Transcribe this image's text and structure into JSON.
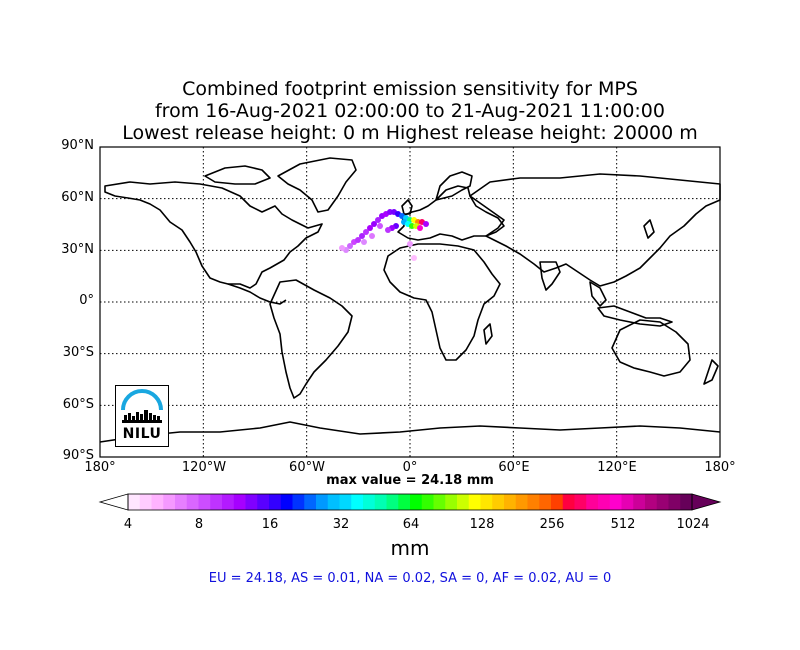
{
  "title": {
    "line1": "Combined footprint emission sensitivity for MPS",
    "line2": "from 16-Aug-2021 02:00:00 to 21-Aug-2021 11:00:00",
    "line3": "Lowest release height: 0 m      Highest release height: 20000 m"
  },
  "axes": {
    "lat_labels": [
      "90°N",
      "60°N",
      "30°N",
      "0°",
      "30°S",
      "60°S",
      "90°S"
    ],
    "lon_labels": [
      "180°",
      "120°W",
      "60°W",
      "0°",
      "60°E",
      "120°E",
      "180°"
    ]
  },
  "max_value_text": "max value = 24.18 mm",
  "colorbar": {
    "ticks": [
      "4",
      "8",
      "16",
      "32",
      "64",
      "128",
      "256",
      "512",
      "1024"
    ],
    "unit": "mm",
    "colors": [
      "#ffe6ff",
      "#ffccff",
      "#ffb3ff",
      "#f599ff",
      "#e67fff",
      "#d966ff",
      "#cc4dff",
      "#bf33ff",
      "#b31aff",
      "#a600ff",
      "#8000ff",
      "#5900ff",
      "#3300ff",
      "#0000ff",
      "#0033ff",
      "#0066ff",
      "#0099ff",
      "#00bfff",
      "#00d9ff",
      "#00ffff",
      "#00ffd9",
      "#00ffb3",
      "#00ff80",
      "#00ff40",
      "#00ff00",
      "#33ff00",
      "#66ff00",
      "#99ff00",
      "#ccff00",
      "#ffff00",
      "#ffe600",
      "#ffcc00",
      "#ffb300",
      "#ff9900",
      "#ff8000",
      "#ff6600",
      "#ff4000",
      "#ff0040",
      "#ff0066",
      "#ff0099",
      "#ff00b3",
      "#ff00cc",
      "#e600b3",
      "#cc0099",
      "#b30080",
      "#990073",
      "#800066",
      "#660059"
    ]
  },
  "regional_stats": "EU = 24.18,  AS = 0.01,  NA = 0.02,  SA = 0,  AF = 0.02,  AU = 0",
  "logo": {
    "text": "NILU"
  }
}
